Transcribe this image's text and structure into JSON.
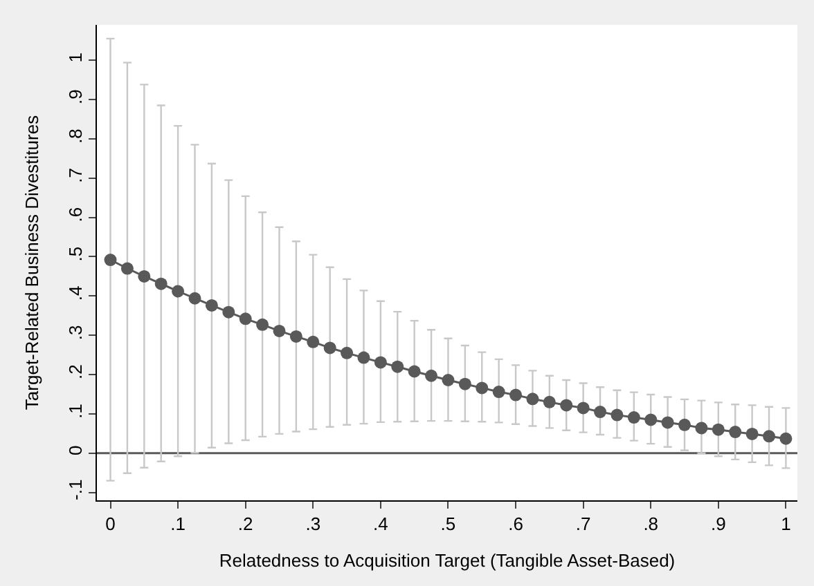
{
  "chart_data": {
    "type": "line",
    "xlabel": "Relatedness to Acquisition Target (Tangible Asset-Based)",
    "ylabel": "Target-Related Business Divestitures",
    "x": [
      0,
      0.025,
      0.05,
      0.075,
      0.1,
      0.125,
      0.15,
      0.175,
      0.2,
      0.225,
      0.25,
      0.275,
      0.3,
      0.325,
      0.35,
      0.375,
      0.4,
      0.425,
      0.45,
      0.475,
      0.5,
      0.525,
      0.55,
      0.575,
      0.6,
      0.625,
      0.65,
      0.675,
      0.7,
      0.725,
      0.75,
      0.775,
      0.8,
      0.825,
      0.85,
      0.875,
      0.9,
      0.925,
      0.95,
      0.975,
      1
    ],
    "series": [
      {
        "color": "#595959",
        "values": [
          0.492,
          0.47,
          0.45,
          0.431,
          0.412,
          0.394,
          0.376,
          0.359,
          0.342,
          0.327,
          0.311,
          0.297,
          0.283,
          0.268,
          0.255,
          0.243,
          0.231,
          0.22,
          0.208,
          0.197,
          0.186,
          0.176,
          0.166,
          0.156,
          0.148,
          0.138,
          0.13,
          0.122,
          0.115,
          0.105,
          0.097,
          0.091,
          0.085,
          0.078,
          0.072,
          0.064,
          0.06,
          0.054,
          0.049,
          0.043,
          0.037
        ],
        "errors": [
          [
            -0.07,
            1.055
          ],
          [
            -0.051,
            0.994
          ],
          [
            -0.037,
            0.938
          ],
          [
            -0.021,
            0.885
          ],
          [
            -0.008,
            0.833
          ],
          [
            0.001,
            0.785
          ],
          [
            0.014,
            0.737
          ],
          [
            0.025,
            0.695
          ],
          [
            0.033,
            0.654
          ],
          [
            0.042,
            0.613
          ],
          [
            0.049,
            0.575
          ],
          [
            0.055,
            0.539
          ],
          [
            0.061,
            0.505
          ],
          [
            0.067,
            0.473
          ],
          [
            0.072,
            0.443
          ],
          [
            0.075,
            0.414
          ],
          [
            0.079,
            0.387
          ],
          [
            0.08,
            0.36
          ],
          [
            0.081,
            0.337
          ],
          [
            0.082,
            0.314
          ],
          [
            0.082,
            0.292
          ],
          [
            0.081,
            0.274
          ],
          [
            0.08,
            0.257
          ],
          [
            0.078,
            0.239
          ],
          [
            0.074,
            0.224
          ],
          [
            0.069,
            0.21
          ],
          [
            0.064,
            0.197
          ],
          [
            0.058,
            0.186
          ],
          [
            0.053,
            0.178
          ],
          [
            0.047,
            0.168
          ],
          [
            0.039,
            0.16
          ],
          [
            0.032,
            0.155
          ],
          [
            0.024,
            0.149
          ],
          [
            0.016,
            0.143
          ],
          [
            0.007,
            0.137
          ],
          [
            0.0,
            0.134
          ],
          [
            -0.008,
            0.129
          ],
          [
            -0.016,
            0.124
          ],
          [
            -0.023,
            0.122
          ],
          [
            -0.031,
            0.118
          ],
          [
            -0.038,
            0.115
          ]
        ]
      }
    ],
    "xlim": [
      -0.02,
      1.017
    ],
    "ylim": [
      -0.12,
      1.09
    ],
    "xticks": [
      0,
      {
        "value": 0.1,
        "label": ".1"
      },
      {
        "value": 0.2,
        "label": ".2"
      },
      {
        "value": 0.3,
        "label": ".3"
      },
      {
        "value": 0.4,
        "label": ".4"
      },
      {
        "value": 0.5,
        "label": ".5"
      },
      {
        "value": 0.6,
        "label": ".6"
      },
      {
        "value": 0.7,
        "label": ".7"
      },
      {
        "value": 0.8,
        "label": ".8"
      },
      {
        "value": 0.9,
        "label": ".9"
      },
      1
    ],
    "yticks": [
      {
        "value": -0.1,
        "label": "-.1"
      },
      0,
      {
        "value": 0.1,
        "label": ".1"
      },
      {
        "value": 0.2,
        "label": ".2"
      },
      {
        "value": 0.3,
        "label": ".3"
      },
      {
        "value": 0.4,
        "label": ".4"
      },
      {
        "value": 0.5,
        "label": ".5"
      },
      {
        "value": 0.6,
        "label": ".6"
      },
      {
        "value": 0.7,
        "label": ".7"
      },
      {
        "value": 0.8,
        "label": ".8"
      },
      {
        "value": 0.9,
        "label": ".9"
      },
      1
    ],
    "ref_lines": [
      {
        "axis": "y",
        "value": 0,
        "color": "#595959"
      }
    ],
    "marker": "circle",
    "line_style": "solid",
    "grid": false
  }
}
